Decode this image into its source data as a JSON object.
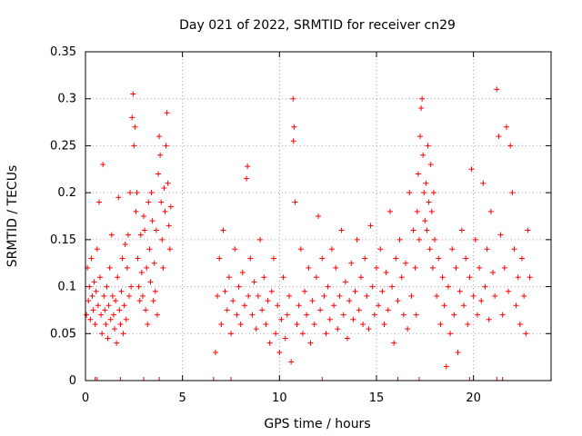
{
  "chart_data": {
    "type": "scatter",
    "title": "Day 021 of 2022, SRMTID for receiver cn29",
    "xlabel": "GPS time / hours",
    "ylabel": "SRMTID / TECUs",
    "xlim": [
      0,
      24
    ],
    "ylim": [
      0,
      0.35
    ],
    "grid": true,
    "legend": "none",
    "marker": "+",
    "color": "#ff0000",
    "x_ticks": [
      0,
      5,
      10,
      15,
      20
    ],
    "x_tick_labels": [
      "0",
      "5",
      "10",
      "15",
      "20"
    ],
    "y_ticks": [
      0,
      0.05,
      0.1,
      0.15,
      0.2,
      0.25,
      0.3,
      0.35
    ],
    "y_tick_labels": [
      "0",
      "0.05",
      "0.1",
      "0.15",
      "0.2",
      "0.25",
      "0.3",
      "0.35"
    ],
    "series": [
      {
        "name": "SRMTID",
        "points": [
          [
            0.05,
            0.07
          ],
          [
            0.1,
            0.12
          ],
          [
            0.15,
            0.085
          ],
          [
            0.2,
            0.1
          ],
          [
            0.25,
            0.065
          ],
          [
            0.3,
            0.13
          ],
          [
            0.35,
            0.09
          ],
          [
            0.4,
            0.075
          ],
          [
            0.45,
            0.105
          ],
          [
            0.5,
            0.06
          ],
          [
            0.55,
            0.095
          ],
          [
            0.6,
            0.14
          ],
          [
            0.65,
            0.08
          ],
          [
            0.7,
            0.19
          ],
          [
            0.75,
            0.11
          ],
          [
            0.8,
            0.07
          ],
          [
            0.85,
            0.05
          ],
          [
            0.9,
            0.23
          ],
          [
            0.95,
            0.09
          ],
          [
            1.0,
            0.075
          ],
          [
            1.05,
            0.06
          ],
          [
            1.1,
            0.1
          ],
          [
            1.15,
            0.045
          ],
          [
            1.2,
            0.08
          ],
          [
            1.25,
            0.12
          ],
          [
            1.3,
            0.065
          ],
          [
            1.35,
            0.155
          ],
          [
            1.4,
            0.09
          ],
          [
            1.45,
            0.07
          ],
          [
            1.5,
            0.055
          ],
          [
            1.55,
            0.085
          ],
          [
            1.6,
            0.04
          ],
          [
            1.65,
            0.11
          ],
          [
            1.7,
            0.195
          ],
          [
            1.75,
            0.075
          ],
          [
            1.8,
            0.06
          ],
          [
            1.85,
            0.095
          ],
          [
            1.9,
            0.13
          ],
          [
            1.95,
            0.05
          ],
          [
            2.0,
            0.08
          ],
          [
            2.05,
            0.145
          ],
          [
            2.1,
            0.065
          ],
          [
            2.15,
            0.12
          ],
          [
            2.2,
            0.155
          ],
          [
            2.25,
            0.09
          ],
          [
            2.3,
            0.2
          ],
          [
            2.35,
            0.1
          ],
          [
            2.4,
            0.28
          ],
          [
            2.45,
            0.305
          ],
          [
            2.5,
            0.25
          ],
          [
            2.55,
            0.27
          ],
          [
            2.6,
            0.18
          ],
          [
            2.65,
            0.2
          ],
          [
            2.7,
            0.13
          ],
          [
            2.75,
            0.1
          ],
          [
            2.8,
            0.085
          ],
          [
            2.85,
            0.155
          ],
          [
            2.9,
            0.115
          ],
          [
            2.95,
            0.09
          ],
          [
            3.0,
            0.175
          ],
          [
            3.05,
            0.16
          ],
          [
            3.1,
            0.075
          ],
          [
            3.15,
            0.12
          ],
          [
            3.2,
            0.06
          ],
          [
            3.25,
            0.19
          ],
          [
            3.3,
            0.14
          ],
          [
            3.35,
            0.105
          ],
          [
            3.4,
            0.2
          ],
          [
            3.45,
            0.17
          ],
          [
            3.5,
            0.085
          ],
          [
            3.55,
            0.125
          ],
          [
            3.6,
            0.095
          ],
          [
            3.65,
            0.16
          ],
          [
            3.7,
            0.07
          ],
          [
            3.75,
            0.22
          ],
          [
            3.8,
            0.26
          ],
          [
            3.85,
            0.24
          ],
          [
            3.9,
            0.19
          ],
          [
            3.95,
            0.15
          ],
          [
            4.0,
            0.12
          ],
          [
            4.05,
            0.205
          ],
          [
            4.1,
            0.18
          ],
          [
            4.15,
            0.25
          ],
          [
            4.2,
            0.285
          ],
          [
            4.25,
            0.21
          ],
          [
            4.3,
            0.165
          ],
          [
            4.35,
            0.14
          ],
          [
            4.4,
            0.185
          ],
          [
            6.7,
            0.03
          ],
          [
            6.8,
            0.09
          ],
          [
            6.9,
            0.13
          ],
          [
            7.0,
            0.06
          ],
          [
            7.1,
            0.16
          ],
          [
            7.2,
            0.095
          ],
          [
            7.3,
            0.075
          ],
          [
            7.4,
            0.11
          ],
          [
            7.5,
            0.05
          ],
          [
            7.6,
            0.085
          ],
          [
            7.7,
            0.14
          ],
          [
            7.8,
            0.07
          ],
          [
            7.9,
            0.1
          ],
          [
            8.0,
            0.06
          ],
          [
            8.1,
            0.115
          ],
          [
            8.2,
            0.08
          ],
          [
            8.3,
            0.215
          ],
          [
            8.35,
            0.228
          ],
          [
            8.4,
            0.09
          ],
          [
            8.5,
            0.13
          ],
          [
            8.6,
            0.07
          ],
          [
            8.7,
            0.105
          ],
          [
            8.8,
            0.055
          ],
          [
            8.9,
            0.09
          ],
          [
            9.0,
            0.15
          ],
          [
            9.1,
            0.075
          ],
          [
            9.2,
            0.11
          ],
          [
            9.3,
            0.06
          ],
          [
            9.4,
            0.085
          ],
          [
            9.5,
            0.04
          ],
          [
            9.6,
            0.095
          ],
          [
            9.7,
            0.13
          ],
          [
            9.8,
            0.05
          ],
          [
            9.9,
            0.08
          ],
          [
            10.0,
            0.03
          ],
          [
            10.1,
            0.065
          ],
          [
            10.2,
            0.11
          ],
          [
            10.3,
            0.045
          ],
          [
            10.4,
            0.07
          ],
          [
            10.5,
            0.09
          ],
          [
            10.6,
            0.02
          ],
          [
            10.7,
            0.3
          ],
          [
            10.72,
            0.255
          ],
          [
            10.75,
            0.27
          ],
          [
            10.8,
            0.19
          ],
          [
            10.9,
            0.06
          ],
          [
            11.0,
            0.08
          ],
          [
            11.1,
            0.14
          ],
          [
            11.2,
            0.05
          ],
          [
            11.3,
            0.095
          ],
          [
            11.4,
            0.07
          ],
          [
            11.5,
            0.12
          ],
          [
            11.6,
            0.04
          ],
          [
            11.7,
            0.085
          ],
          [
            11.8,
            0.06
          ],
          [
            11.9,
            0.11
          ],
          [
            12.0,
            0.175
          ],
          [
            12.1,
            0.075
          ],
          [
            12.2,
            0.13
          ],
          [
            12.3,
            0.09
          ],
          [
            12.4,
            0.05
          ],
          [
            12.5,
            0.1
          ],
          [
            12.6,
            0.065
          ],
          [
            12.7,
            0.14
          ],
          [
            12.8,
            0.08
          ],
          [
            12.9,
            0.12
          ],
          [
            13.0,
            0.055
          ],
          [
            13.1,
            0.09
          ],
          [
            13.2,
            0.16
          ],
          [
            13.3,
            0.07
          ],
          [
            13.4,
            0.105
          ],
          [
            13.5,
            0.045
          ],
          [
            13.6,
            0.085
          ],
          [
            13.7,
            0.125
          ],
          [
            13.8,
            0.065
          ],
          [
            13.9,
            0.095
          ],
          [
            14.0,
            0.15
          ],
          [
            14.1,
            0.075
          ],
          [
            14.2,
            0.11
          ],
          [
            14.3,
            0.06
          ],
          [
            14.4,
            0.13
          ],
          [
            14.5,
            0.09
          ],
          [
            14.6,
            0.055
          ],
          [
            14.7,
            0.165
          ],
          [
            14.8,
            0.1
          ],
          [
            14.9,
            0.07
          ],
          [
            15.0,
            0.12
          ],
          [
            15.1,
            0.08
          ],
          [
            15.2,
            0.14
          ],
          [
            15.3,
            0.095
          ],
          [
            15.4,
            0.06
          ],
          [
            15.5,
            0.115
          ],
          [
            15.6,
            0.075
          ],
          [
            15.7,
            0.18
          ],
          [
            15.8,
            0.1
          ],
          [
            15.9,
            0.04
          ],
          [
            16.0,
            0.13
          ],
          [
            16.1,
            0.085
          ],
          [
            16.2,
            0.15
          ],
          [
            16.3,
            0.11
          ],
          [
            16.4,
            0.07
          ],
          [
            16.5,
            0.125
          ],
          [
            16.6,
            0.055
          ],
          [
            16.7,
            0.2
          ],
          [
            16.8,
            0.09
          ],
          [
            16.9,
            0.16
          ],
          [
            17.0,
            0.12
          ],
          [
            17.05,
            0.07
          ],
          [
            17.1,
            0.18
          ],
          [
            17.15,
            0.22
          ],
          [
            17.2,
            0.15
          ],
          [
            17.25,
            0.26
          ],
          [
            17.3,
            0.29
          ],
          [
            17.35,
            0.3
          ],
          [
            17.4,
            0.24
          ],
          [
            17.45,
            0.2
          ],
          [
            17.5,
            0.17
          ],
          [
            17.55,
            0.21
          ],
          [
            17.6,
            0.16
          ],
          [
            17.65,
            0.25
          ],
          [
            17.7,
            0.19
          ],
          [
            17.75,
            0.14
          ],
          [
            17.8,
            0.23
          ],
          [
            17.85,
            0.18
          ],
          [
            17.9,
            0.12
          ],
          [
            17.95,
            0.2
          ],
          [
            18.0,
            0.15
          ],
          [
            18.1,
            0.09
          ],
          [
            18.2,
            0.13
          ],
          [
            18.3,
            0.06
          ],
          [
            18.4,
            0.11
          ],
          [
            18.5,
            0.08
          ],
          [
            18.6,
            0.015
          ],
          [
            18.7,
            0.1
          ],
          [
            18.8,
            0.05
          ],
          [
            18.9,
            0.14
          ],
          [
            19.0,
            0.07
          ],
          [
            19.1,
            0.12
          ],
          [
            19.2,
            0.03
          ],
          [
            19.3,
            0.095
          ],
          [
            19.4,
            0.16
          ],
          [
            19.5,
            0.08
          ],
          [
            19.6,
            0.13
          ],
          [
            19.7,
            0.06
          ],
          [
            19.8,
            0.11
          ],
          [
            19.9,
            0.225
          ],
          [
            20.0,
            0.09
          ],
          [
            20.1,
            0.15
          ],
          [
            20.2,
            0.07
          ],
          [
            20.3,
            0.12
          ],
          [
            20.4,
            0.085
          ],
          [
            20.5,
            0.21
          ],
          [
            20.6,
            0.1
          ],
          [
            20.7,
            0.14
          ],
          [
            20.8,
            0.065
          ],
          [
            20.9,
            0.18
          ],
          [
            21.0,
            0.115
          ],
          [
            21.1,
            0.09
          ],
          [
            21.2,
            0.31
          ],
          [
            21.3,
            0.26
          ],
          [
            21.4,
            0.155
          ],
          [
            21.5,
            0.07
          ],
          [
            21.6,
            0.12
          ],
          [
            21.7,
            0.27
          ],
          [
            21.8,
            0.095
          ],
          [
            21.9,
            0.25
          ],
          [
            22.0,
            0.2
          ],
          [
            22.1,
            0.14
          ],
          [
            22.2,
            0.08
          ],
          [
            22.3,
            0.11
          ],
          [
            22.4,
            0.06
          ],
          [
            22.5,
            0.13
          ],
          [
            22.6,
            0.09
          ],
          [
            22.7,
            0.05
          ],
          [
            22.8,
            0.16
          ],
          [
            22.9,
            0.11
          ]
        ]
      }
    ],
    "rug_ticks_x": [
      0.5,
      0.6,
      1.8,
      3.0,
      3.8,
      6.6,
      7.5,
      12.2,
      16.1,
      17.2,
      19.8,
      21.2,
      21.5
    ]
  }
}
